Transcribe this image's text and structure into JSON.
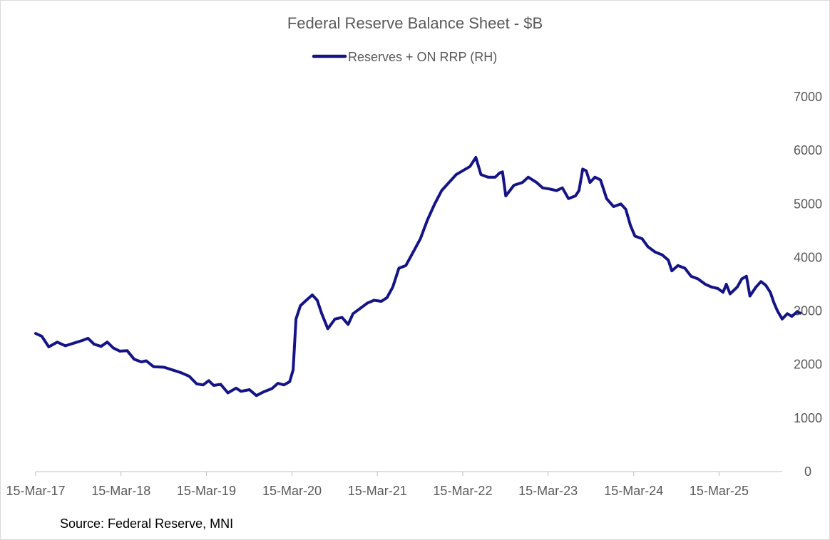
{
  "chart_data": {
    "type": "line",
    "title": "Federal Reserve Balance Sheet - $B",
    "source": "Source: Federal Reserve, MNI",
    "xlabel": "",
    "ylabel": "",
    "x_tick_labels": [
      "15-Mar-17",
      "15-Mar-18",
      "15-Mar-19",
      "15-Mar-20",
      "15-Mar-21",
      "15-Mar-22",
      "15-Mar-23",
      "15-Mar-24",
      "15-Mar-25"
    ],
    "y_ticks": [
      0,
      1000,
      2000,
      3000,
      4000,
      5000,
      6000,
      7000
    ],
    "ylim": [
      0,
      7000
    ],
    "xlim": [
      "2017-03-15",
      "2025-12-10"
    ],
    "grid": false,
    "y_axis_side": "right",
    "legend_position": "top-center",
    "colors": {
      "series": "#141487",
      "text": "#595959",
      "axis": "#bfbfbf"
    },
    "series": [
      {
        "name": "Reserves + ON RRP (RH)",
        "points": [
          [
            "2017-03-15",
            2580
          ],
          [
            "2017-04-10",
            2530
          ],
          [
            "2017-05-10",
            2330
          ],
          [
            "2017-06-15",
            2420
          ],
          [
            "2017-07-20",
            2350
          ],
          [
            "2017-08-25",
            2400
          ],
          [
            "2017-10-01",
            2450
          ],
          [
            "2017-10-25",
            2490
          ],
          [
            "2017-11-20",
            2380
          ],
          [
            "2017-12-20",
            2340
          ],
          [
            "2018-01-15",
            2420
          ],
          [
            "2018-02-10",
            2310
          ],
          [
            "2018-03-10",
            2250
          ],
          [
            "2018-04-10",
            2260
          ],
          [
            "2018-05-10",
            2100
          ],
          [
            "2018-06-10",
            2050
          ],
          [
            "2018-07-01",
            2070
          ],
          [
            "2018-08-01",
            1960
          ],
          [
            "2018-09-15",
            1950
          ],
          [
            "2018-10-20",
            1900
          ],
          [
            "2018-11-25",
            1850
          ],
          [
            "2019-01-01",
            1780
          ],
          [
            "2019-02-01",
            1640
          ],
          [
            "2019-03-01",
            1620
          ],
          [
            "2019-03-25",
            1700
          ],
          [
            "2019-04-15",
            1610
          ],
          [
            "2019-05-15",
            1630
          ],
          [
            "2019-06-15",
            1470
          ],
          [
            "2019-07-20",
            1560
          ],
          [
            "2019-08-10",
            1500
          ],
          [
            "2019-09-15",
            1530
          ],
          [
            "2019-10-15",
            1420
          ],
          [
            "2019-11-15",
            1490
          ],
          [
            "2019-12-20",
            1550
          ],
          [
            "2020-01-15",
            1650
          ],
          [
            "2020-02-10",
            1620
          ],
          [
            "2020-03-05",
            1680
          ],
          [
            "2020-03-20",
            1900
          ],
          [
            "2020-04-01",
            2850
          ],
          [
            "2020-04-20",
            3100
          ],
          [
            "2020-05-15",
            3200
          ],
          [
            "2020-06-10",
            3300
          ],
          [
            "2020-07-01",
            3200
          ],
          [
            "2020-07-20",
            2950
          ],
          [
            "2020-08-15",
            2670
          ],
          [
            "2020-09-15",
            2850
          ],
          [
            "2020-10-15",
            2880
          ],
          [
            "2020-11-10",
            2750
          ],
          [
            "2020-12-01",
            2950
          ],
          [
            "2021-01-01",
            3050
          ],
          [
            "2021-02-01",
            3150
          ],
          [
            "2021-03-01",
            3200
          ],
          [
            "2021-04-01",
            3180
          ],
          [
            "2021-04-25",
            3250
          ],
          [
            "2021-05-20",
            3450
          ],
          [
            "2021-06-15",
            3800
          ],
          [
            "2021-07-15",
            3850
          ],
          [
            "2021-08-15",
            4100
          ],
          [
            "2021-09-15",
            4350
          ],
          [
            "2021-10-15",
            4700
          ],
          [
            "2021-11-15",
            5000
          ],
          [
            "2021-12-15",
            5250
          ],
          [
            "2022-01-15",
            5400
          ],
          [
            "2022-02-15",
            5550
          ],
          [
            "2022-03-15",
            5620
          ],
          [
            "2022-04-15",
            5700
          ],
          [
            "2022-05-10",
            5870
          ],
          [
            "2022-06-01",
            5550
          ],
          [
            "2022-07-01",
            5500
          ],
          [
            "2022-08-01",
            5500
          ],
          [
            "2022-08-20",
            5580
          ],
          [
            "2022-09-01",
            5600
          ],
          [
            "2022-09-15",
            5150
          ],
          [
            "2022-10-20",
            5350
          ],
          [
            "2022-11-25",
            5400
          ],
          [
            "2022-12-20",
            5500
          ],
          [
            "2023-01-25",
            5400
          ],
          [
            "2023-02-20",
            5300
          ],
          [
            "2023-03-20",
            5280
          ],
          [
            "2023-04-20",
            5250
          ],
          [
            "2023-05-15",
            5300
          ],
          [
            "2023-06-10",
            5100
          ],
          [
            "2023-07-10",
            5150
          ],
          [
            "2023-07-25",
            5250
          ],
          [
            "2023-08-10",
            5650
          ],
          [
            "2023-08-25",
            5620
          ],
          [
            "2023-09-10",
            5400
          ],
          [
            "2023-10-01",
            5500
          ],
          [
            "2023-10-25",
            5450
          ],
          [
            "2023-11-20",
            5100
          ],
          [
            "2023-12-20",
            4950
          ],
          [
            "2024-01-20",
            5000
          ],
          [
            "2024-02-10",
            4900
          ],
          [
            "2024-03-01",
            4600
          ],
          [
            "2024-03-20",
            4400
          ],
          [
            "2024-04-20",
            4350
          ],
          [
            "2024-05-15",
            4200
          ],
          [
            "2024-06-15",
            4100
          ],
          [
            "2024-07-15",
            4050
          ],
          [
            "2024-08-10",
            3950
          ],
          [
            "2024-08-25",
            3750
          ],
          [
            "2024-09-20",
            3850
          ],
          [
            "2024-10-20",
            3800
          ],
          [
            "2024-11-15",
            3650
          ],
          [
            "2024-12-15",
            3600
          ],
          [
            "2025-01-15",
            3500
          ],
          [
            "2025-02-10",
            3450
          ],
          [
            "2025-03-10",
            3420
          ],
          [
            "2025-04-01",
            3350
          ],
          [
            "2025-04-15",
            3500
          ],
          [
            "2025-05-01",
            3320
          ],
          [
            "2025-06-01",
            3450
          ],
          [
            "2025-06-20",
            3600
          ],
          [
            "2025-07-10",
            3650
          ],
          [
            "2025-07-25",
            3280
          ],
          [
            "2025-08-20",
            3450
          ],
          [
            "2025-09-10",
            3550
          ],
          [
            "2025-10-01",
            3480
          ],
          [
            "2025-10-20",
            3350
          ],
          [
            "2025-11-05",
            3150
          ],
          [
            "2025-11-20",
            3000
          ],
          [
            "2025-12-10",
            2850
          ],
          [
            "2026-01-01",
            2950
          ],
          [
            "2026-01-20",
            2900
          ],
          [
            "2026-02-10",
            2980
          ],
          [
            "2026-02-25",
            2960
          ]
        ]
      }
    ]
  }
}
